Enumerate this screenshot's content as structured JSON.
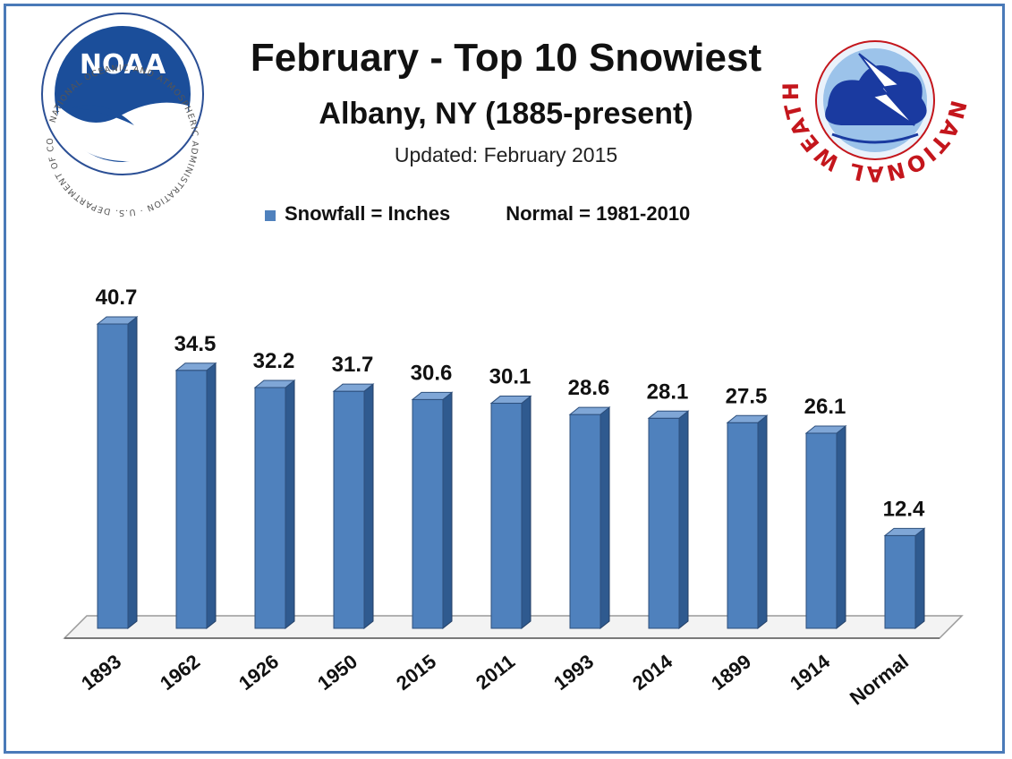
{
  "chart_data": {
    "type": "bar",
    "title": "February - Top 10 Snowiest",
    "subtitle": "Albany, NY (1885-present)",
    "updated": "Updated:  February 2015",
    "legend": {
      "series_label": "Snowfall = Inches",
      "normal_label": "Normal = 1981-2010",
      "placement": "top"
    },
    "categories": [
      "1893",
      "1962",
      "1926",
      "1950",
      "2015",
      "2011",
      "1993",
      "2014",
      "1899",
      "1914",
      "Normal"
    ],
    "values": [
      40.7,
      34.5,
      32.2,
      31.7,
      30.6,
      30.1,
      28.6,
      28.1,
      27.5,
      26.1,
      12.4
    ],
    "value_labels": [
      "40.7",
      "34.5",
      "32.2",
      "31.7",
      "30.6",
      "30.1",
      "28.6",
      "28.1",
      "27.5",
      "26.1",
      "12.4"
    ],
    "ylim": [
      0,
      42
    ],
    "grid": false,
    "style": "3d-column",
    "colors": {
      "bar": "#4f81bd",
      "bar_side": "#2f5a8f",
      "bar_top": "#7fa6d6",
      "frame": "#4a7ab8"
    }
  },
  "logos": {
    "left": {
      "icon": "noaa-logo",
      "text": "NOAA",
      "ring_text": "NATIONAL OCEANIC AND ATMOSPHERIC ADMINISTRATION · U.S. DEPARTMENT OF COMMERCE"
    },
    "right": {
      "icon": "nws-logo",
      "ring_text": "NATIONAL WEATHER SERVICE"
    }
  }
}
